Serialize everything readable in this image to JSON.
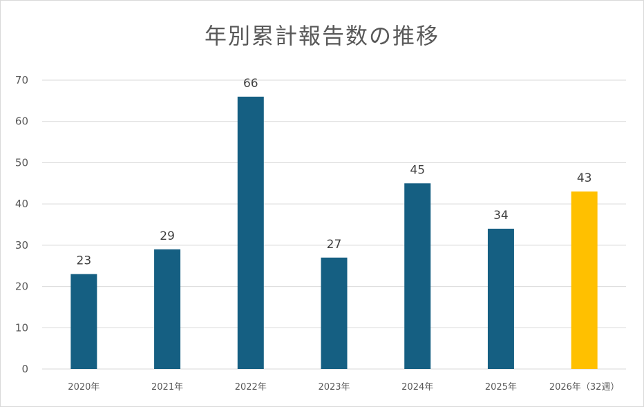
{
  "chart_data": {
    "type": "bar",
    "title": "年別累計報告数の推移",
    "xlabel": "",
    "ylabel": "",
    "categories": [
      "2020年",
      "2021年",
      "2022年",
      "2023年",
      "2024年",
      "2025年",
      "2026年（32週）"
    ],
    "values": [
      23,
      29,
      66,
      27,
      45,
      34,
      43
    ],
    "ylim": [
      0,
      70
    ],
    "yticks": [
      0,
      10,
      20,
      30,
      40,
      50,
      60,
      70
    ],
    "grid": true,
    "legend": "none",
    "bar_color": "#155f82",
    "highlight_color": "#ffc000",
    "highlight_index": 6
  }
}
